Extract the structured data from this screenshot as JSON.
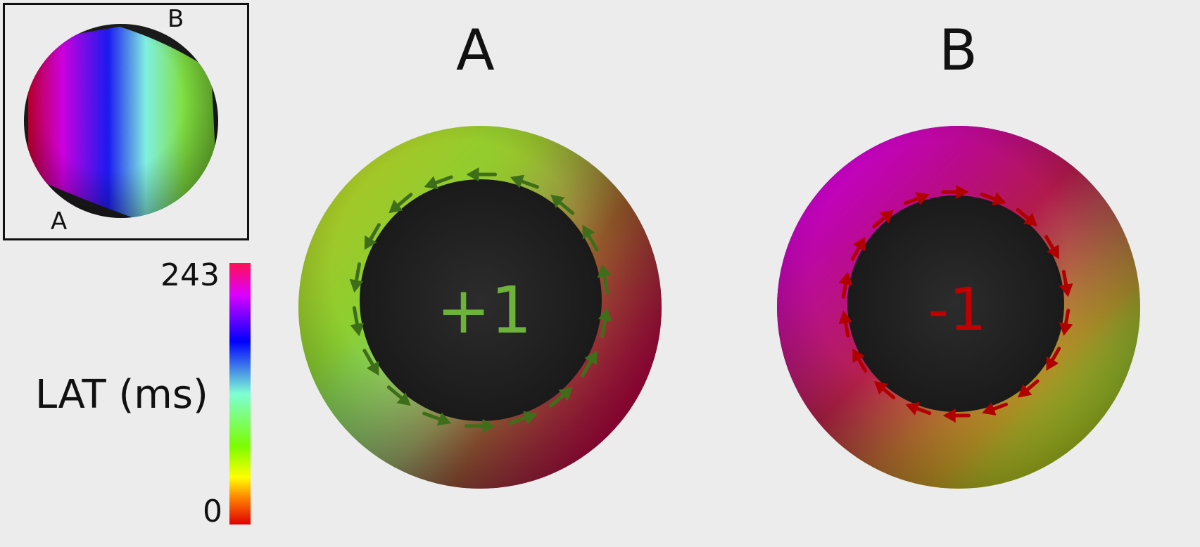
{
  "inset": {
    "label_top": "B",
    "label_bottom": "A"
  },
  "panels": [
    {
      "title": "A",
      "charge": "+1",
      "charge_color": "#6db33a",
      "arrow_color": "#3f6e1a",
      "arrow_direction": "counter-clockwise"
    },
    {
      "title": "B",
      "charge": "-1",
      "charge_color": "#c00000",
      "arrow_color": "#b00000",
      "arrow_direction": "clockwise"
    }
  ],
  "colorbar": {
    "title": "LAT (ms)",
    "max_label": "243",
    "min_label": "0",
    "colors": [
      "#e00000",
      "#ffff00",
      "#7cfc00",
      "#7fffd4",
      "#0000ff",
      "#dd00ff",
      "#ff1050"
    ]
  },
  "colors": {
    "background": "#ececec",
    "core": "#262626"
  }
}
